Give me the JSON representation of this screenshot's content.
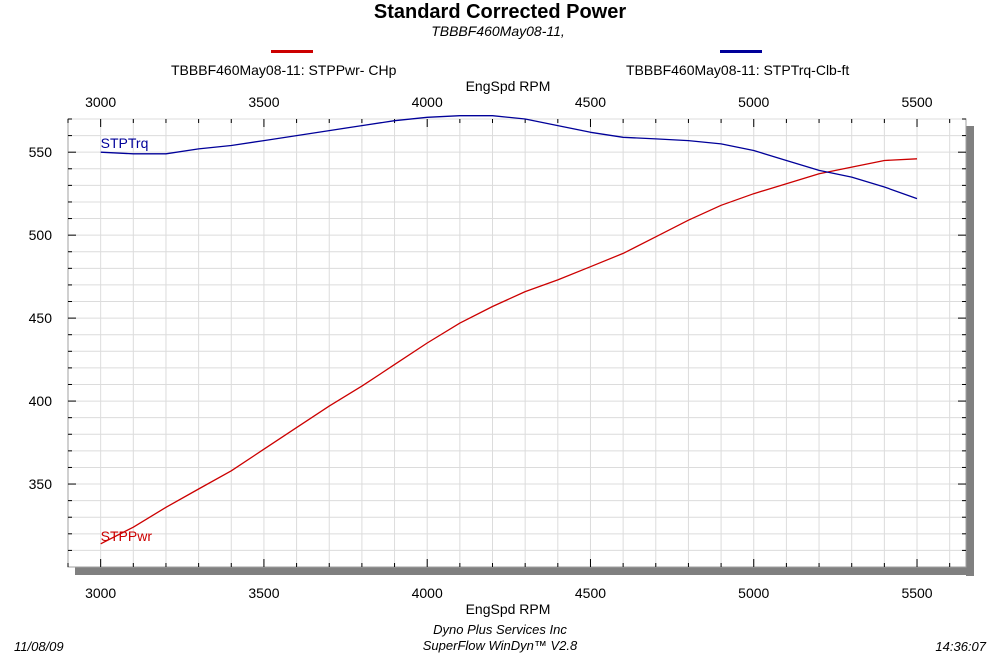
{
  "title": "Standard Corrected Power",
  "subtitle": "TBBBF460May08-11,",
  "legend": [
    {
      "label": "TBBBF460May08-11: STPPwr- CHp",
      "color": "#cc0000"
    },
    {
      "label": "TBBBF460May08-11: STPTrq-Clb-ft",
      "color": "#000099"
    }
  ],
  "footer": {
    "date": "11/08/09",
    "company": "Dyno Plus Services Inc",
    "software": "SuperFlow WinDyn™ V2.8",
    "time": "14:36:07"
  },
  "chart_data": {
    "type": "line",
    "xlabel": "EngSpd  RPM",
    "ylabel": "",
    "xlim": [
      2900,
      5650
    ],
    "ylim": [
      300,
      570
    ],
    "xticks": [
      3000,
      3500,
      4000,
      4500,
      5000,
      5500
    ],
    "yticks": [
      350,
      400,
      450,
      500,
      550
    ],
    "grid": true,
    "series": [
      {
        "name": "STPPwr",
        "color": "#cc0000",
        "x": [
          3000,
          3100,
          3200,
          3300,
          3400,
          3500,
          3600,
          3700,
          3800,
          3900,
          4000,
          4100,
          4200,
          4300,
          4400,
          4500,
          4600,
          4700,
          4800,
          4900,
          5000,
          5100,
          5200,
          5300,
          5400,
          5500
        ],
        "y": [
          314,
          324,
          336,
          347,
          358,
          371,
          384,
          397,
          409,
          422,
          435,
          447,
          457,
          466,
          473,
          481,
          489,
          499,
          509,
          518,
          525,
          531,
          537,
          541,
          545,
          546
        ]
      },
      {
        "name": "STPTrq",
        "color": "#000099",
        "x": [
          3000,
          3100,
          3200,
          3300,
          3400,
          3500,
          3600,
          3700,
          3800,
          3900,
          4000,
          4100,
          4200,
          4300,
          4400,
          4500,
          4600,
          4700,
          4800,
          4900,
          5000,
          5100,
          5200,
          5300,
          5400,
          5500
        ],
        "y": [
          550,
          549,
          549,
          552,
          554,
          557,
          560,
          563,
          566,
          569,
          571,
          572,
          572,
          570,
          566,
          562,
          559,
          558,
          557,
          555,
          551,
          545,
          539,
          535,
          529,
          522
        ]
      }
    ]
  }
}
